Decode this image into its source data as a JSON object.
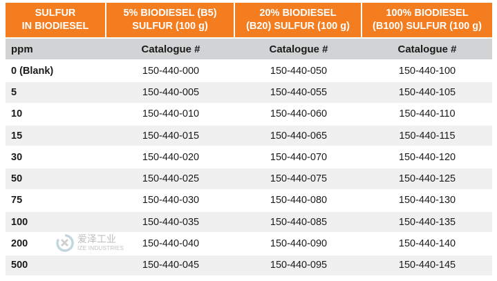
{
  "header": {
    "col1": [
      "SULFUR",
      "IN BIODIESEL"
    ],
    "col2": [
      "5% BIODIESEL (B5)",
      "SULFUR (100 g)"
    ],
    "col3": [
      "20% BIODIESEL",
      "(B20) SULFUR (100 g)"
    ],
    "col4": [
      "100% BIODIESEL",
      "(B100) SULFUR (100 g)"
    ]
  },
  "subheader": {
    "unit": "ppm",
    "cat2": "Catalogue #",
    "cat3": "Catalogue #",
    "cat4": "Catalogue #"
  },
  "rows": [
    {
      "ppm": "0 (Blank)",
      "b5": "150-440-000",
      "b20": "150-440-050",
      "b100": "150-440-100"
    },
    {
      "ppm": "5",
      "b5": "150-440-005",
      "b20": "150-440-055",
      "b100": "150-440-105"
    },
    {
      "ppm": "10",
      "b5": "150-440-010",
      "b20": "150-440-060",
      "b100": "150-440-110"
    },
    {
      "ppm": "15",
      "b5": "150-440-015",
      "b20": "150-440-065",
      "b100": "150-440-115"
    },
    {
      "ppm": "30",
      "b5": "150-440-020",
      "b20": "150-440-070",
      "b100": "150-440-120"
    },
    {
      "ppm": "50",
      "b5": "150-440-025",
      "b20": "150-440-075",
      "b100": "150-440-125"
    },
    {
      "ppm": "75",
      "b5": "150-440-030",
      "b20": "150-440-080",
      "b100": "150-440-130"
    },
    {
      "ppm": "100",
      "b5": "150-440-035",
      "b20": "150-440-085",
      "b100": "150-440-135"
    },
    {
      "ppm": "200",
      "b5": "150-440-040",
      "b20": "150-440-090",
      "b100": "150-440-140"
    },
    {
      "ppm": "500",
      "b5": "150-440-045",
      "b20": "150-440-095",
      "b100": "150-440-145"
    }
  ],
  "watermark": {
    "cn": "爱泽工业",
    "en": "IZE INDUSTRIES"
  },
  "colors": {
    "header_bg": "#f47d20",
    "subheader_bg": "#d1d3d4",
    "stripe_bg": "#f0f0f0"
  }
}
